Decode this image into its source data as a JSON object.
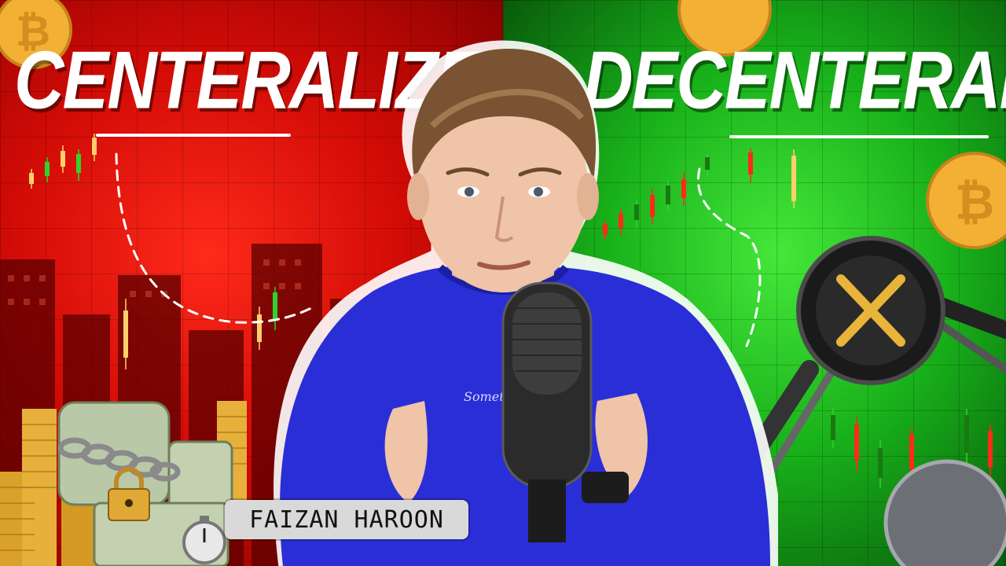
{
  "headline_left": "CENTERALIZE",
  "headline_right": "DECENTERALIZE",
  "name_label": "FAIZAN HAROON",
  "colors": {
    "left_theme": "#e0120a",
    "right_theme": "#2fd42a",
    "shirt": "#2a2ed6",
    "coin": "#f2b134",
    "xrp_token": "#1a1a1a"
  },
  "icons": [
    "bitcoin-coin-icon",
    "xrp-token-icon",
    "microphone-icon",
    "padlock-icon",
    "chain-icon",
    "stopwatch-icon"
  ]
}
